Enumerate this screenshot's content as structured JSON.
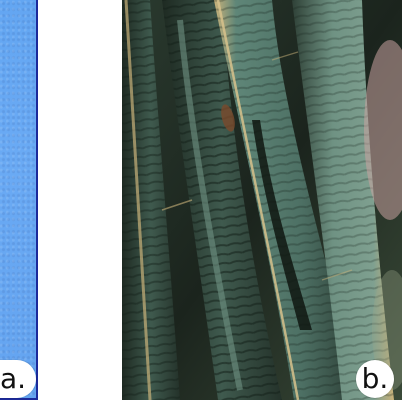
{
  "panels": {
    "a": {
      "label": "a.",
      "color": "#66a8f3",
      "border_color": "#1c2a9a"
    },
    "b": {
      "label": "b.",
      "palette": {
        "dark": "#1b241d",
        "teal": "#4f7569",
        "sage": "#6f9283",
        "highlight": "#c9b27a",
        "rust": "#7a4a2c",
        "pink": "#c8a3a0"
      }
    }
  }
}
